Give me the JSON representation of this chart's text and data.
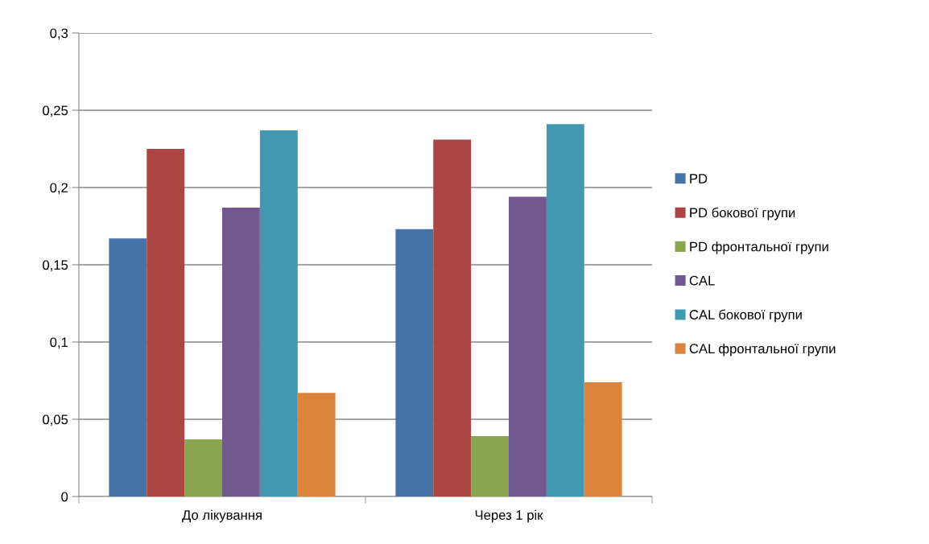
{
  "chart_data": {
    "type": "bar",
    "categories": [
      "До лікування",
      "Через 1 рік"
    ],
    "series": [
      {
        "name": "PD",
        "color": "#4572a7",
        "values": [
          0.167,
          0.173
        ]
      },
      {
        "name": "PD бокової групи",
        "color": "#aa4643",
        "values": [
          0.225,
          0.231
        ]
      },
      {
        "name": "PD фронтальної групи",
        "color": "#89a54e",
        "values": [
          0.037,
          0.039
        ]
      },
      {
        "name": "CAL",
        "color": "#71588f",
        "values": [
          0.187,
          0.194
        ]
      },
      {
        "name": "CAL бокової групи",
        "color": "#4198af",
        "values": [
          0.237,
          0.241
        ]
      },
      {
        "name": "CAL фронтальної групи",
        "color": "#db843d",
        "values": [
          0.067,
          0.074
        ]
      }
    ],
    "ylim": [
      0,
      0.3
    ],
    "yticks": [
      0,
      {
        "value": 0.05,
        "label": "0,05"
      },
      {
        "value": 0.1,
        "label": "0,1"
      },
      {
        "value": 0.15,
        "label": "0,15"
      },
      {
        "value": 0.2,
        "label": "0,2"
      },
      {
        "value": 0.25,
        "label": "0,25"
      },
      {
        "value": 0.3,
        "label": "0,3"
      }
    ],
    "grid": "y",
    "legend": "right"
  }
}
